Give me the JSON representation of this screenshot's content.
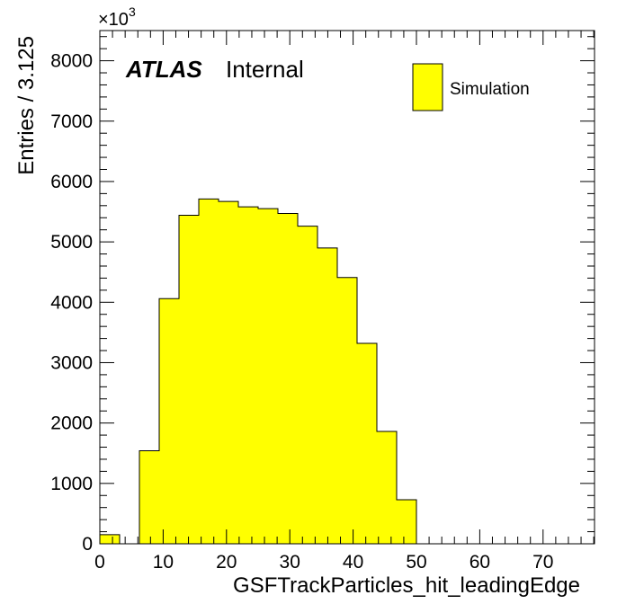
{
  "chart_data": {
    "type": "bar",
    "title": "",
    "xlabel": "GSFTrackParticles_hit_leadingEdge",
    "ylabel": "Entries / 3.125",
    "y_multiplier": "×10",
    "y_multiplier_exponent": "3",
    "xlim": [
      0,
      78.125
    ],
    "ylim": [
      0,
      8500
    ],
    "bin_width": 3.125,
    "bin_edges_start": 0,
    "values": [
      150,
      0,
      1540,
      4060,
      5440,
      5710,
      5670,
      5580,
      5550,
      5470,
      5260,
      4900,
      4410,
      3320,
      1860,
      730,
      0,
      0,
      0,
      0,
      0,
      0,
      0,
      0,
      0
    ],
    "x_ticks": [
      0,
      10,
      20,
      30,
      40,
      50,
      60,
      70
    ],
    "y_ticks": [
      0,
      1000,
      2000,
      3000,
      4000,
      5000,
      6000,
      7000,
      8000
    ],
    "fill_color": "#ffff00",
    "edge_color": "#000000",
    "grid": false,
    "legend": {
      "position": "top-right",
      "entries": [
        "Simulation"
      ]
    },
    "annotations": {
      "experiment": "ATLAS",
      "status": "Internal"
    }
  }
}
